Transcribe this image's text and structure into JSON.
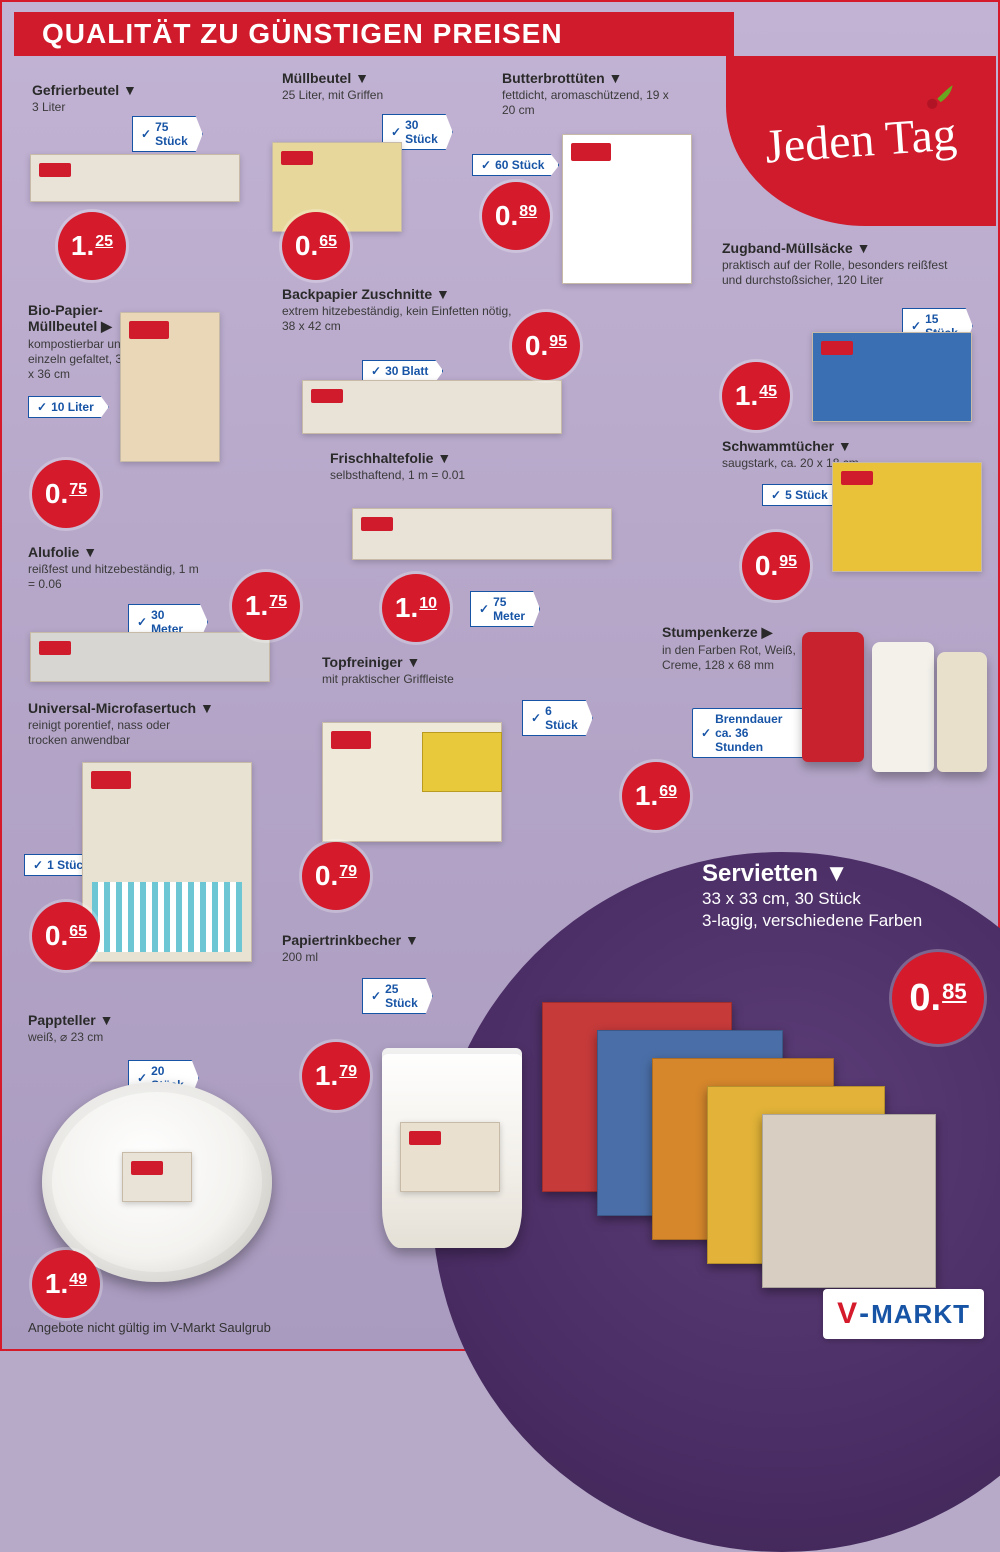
{
  "header": {
    "title": "QUALITÄT ZU GÜNSTIGEN PREISEN"
  },
  "brand": {
    "name": "Jeden Tag"
  },
  "colors": {
    "red": "#cf1b2b",
    "blue": "#1754a6",
    "bg_top": "#c2b3d4",
    "bg_bottom": "#a99bbf",
    "circle": "#4a2d64"
  },
  "products": {
    "gefrierbeutel": {
      "title": "Gefrierbeutel ▼",
      "desc": "3 Liter",
      "qty": "75 Stück",
      "price_int": "1.",
      "price_frac": "25"
    },
    "muellbeutel": {
      "title": "Müllbeutel ▼",
      "desc": "25 Liter, mit Griffen",
      "qty": "30 Stück",
      "price_int": "0.",
      "price_frac": "65"
    },
    "butterbrot": {
      "title": "Butterbrottüten ▼",
      "desc": "fettdicht, aromaschützend, 19 x 20 cm",
      "qty": "60 Stück",
      "price_int": "0.",
      "price_frac": "89"
    },
    "biopapier": {
      "title": "Bio-Papier-Müllbeutel ▶",
      "desc": "kompostierbar und einzeln gefaltet, 36 x 36 cm",
      "qty": "10 Liter",
      "price_int": "0.",
      "price_frac": "75"
    },
    "backpapier": {
      "title": "Backpapier Zuschnitte ▼",
      "desc": "extrem hitzebeständig, kein Einfetten nötig, 38 x 42 cm",
      "qty": "30 Blatt",
      "price_int": "0.",
      "price_frac": "95"
    },
    "zugband": {
      "title": "Zugband-Müllsäcke ▼",
      "desc": "praktisch auf der Rolle, besonders reißfest und durchstoßsicher, 120 Liter",
      "qty": "15 Stück",
      "price_int": "1.",
      "price_frac": "45"
    },
    "frischhalte": {
      "title": "Frischhaltefolie ▼",
      "desc": "selbsthaftend, 1 m = 0.01",
      "qty": "75 Meter",
      "price_int": "1.",
      "price_frac": "10"
    },
    "schwamm": {
      "title": "Schwammtücher ▼",
      "desc": "saugstark, ca. 20 x 18 cm",
      "qty": "5 Stück",
      "price_int": "0.",
      "price_frac": "95"
    },
    "alufolie": {
      "title": "Alufolie ▼",
      "desc": "reißfest und hitzebeständig, 1 m = 0.06",
      "qty": "30 Meter",
      "price_int": "1.",
      "price_frac": "75"
    },
    "topfreiniger": {
      "title": "Topfreiniger ▼",
      "desc": "mit praktischer Griffleiste",
      "qty": "6 Stück",
      "price_int": "0.",
      "price_frac": "79"
    },
    "stumpenkerze": {
      "title": "Stumpenkerze ▶",
      "desc": "in den Farben Rot, Weiß, Creme, 128 x 68 mm",
      "qty": "Brenndauer ca. 36 Stunden",
      "price_int": "1.",
      "price_frac": "69"
    },
    "microfaser": {
      "title": "Universal-Microfasertuch ▼",
      "desc": "reinigt porentief, nass oder trocken anwendbar",
      "qty": "1 Stück",
      "price_int": "0.",
      "price_frac": "65"
    },
    "papiertrink": {
      "title": "Papiertrinkbecher ▼",
      "desc": "200 ml",
      "qty": "25 Stück",
      "price_int": "1.",
      "price_frac": "79"
    },
    "pappteller": {
      "title": "Pappteller ▼",
      "desc": "weiß, ⌀ 23 cm",
      "qty": "20 Stück",
      "price_int": "1.",
      "price_frac": "49"
    },
    "servietten": {
      "title": "Servietten ▼",
      "line1": "33 x 33 cm, 30 Stück",
      "line2": "3-lagig, verschiedene Farben",
      "price_int": "0.",
      "price_frac": "85"
    }
  },
  "napkin_colors": [
    "#c63a3a",
    "#4a6fa8",
    "#d6872c",
    "#e2b338",
    "#d8cfc2"
  ],
  "footer": {
    "note": "Angebote nicht gültig im V-Markt Saulgrub",
    "logo_v": "V",
    "logo_dash": "-",
    "logo_markt": "MARKT"
  }
}
